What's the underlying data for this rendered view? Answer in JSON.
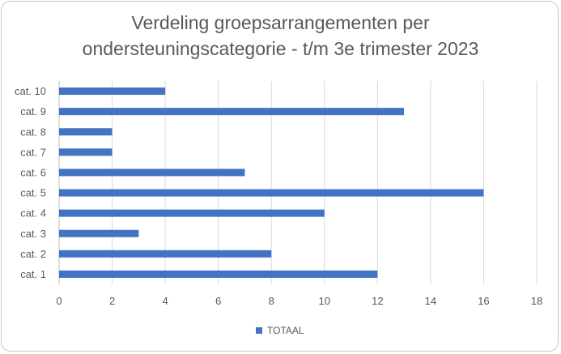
{
  "chart_data": {
    "type": "bar",
    "orientation": "horizontal",
    "title_lines": [
      "Verdeling groepsarrangementen  per",
      "ondersteuningscategorie - t/m 3e trimester 2023"
    ],
    "categories": [
      "cat. 1",
      "cat. 2",
      "cat. 3",
      "cat. 4",
      "cat. 5",
      "cat. 6",
      "cat. 7",
      "cat. 8",
      "cat. 9",
      "cat. 10"
    ],
    "series": [
      {
        "name": "TOTAAL",
        "values": [
          12,
          8,
          3,
          10,
          16,
          7,
          2,
          2,
          13,
          4
        ]
      }
    ],
    "xlim": [
      0,
      18
    ],
    "xticks": [
      "0",
      "2",
      "4",
      "6",
      "8",
      "10",
      "12",
      "14",
      "16",
      "18"
    ],
    "grid": true,
    "legend_position": "bottom",
    "colors": {
      "bar": "#4472C4",
      "grid": "#d9d9d9",
      "text": "#595959"
    }
  }
}
